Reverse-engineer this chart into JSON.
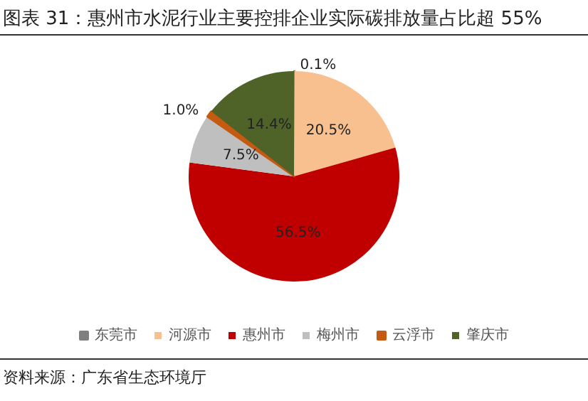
{
  "chart_data": {
    "type": "pie",
    "title": "图表 31：惠州市水泥行业主要控排企业实际碳排放量占比超 55%",
    "categories": [
      "东莞市",
      "河源市",
      "惠州市",
      "梅州市",
      "云浮市",
      "肇庆市"
    ],
    "values": [
      0.1,
      20.5,
      56.5,
      7.5,
      1.0,
      14.4
    ],
    "value_labels": [
      "0.1%",
      "20.5%",
      "56.5%",
      "7.5%",
      "1.0%",
      "14.4%"
    ],
    "colors": [
      "#7f7f7f",
      "#f8c08f",
      "#c00000",
      "#bfbfbf",
      "#c55a11",
      "#4f6228"
    ],
    "legend": "bottom",
    "annotations": [
      "资料来源：广东省生态环境厅"
    ]
  }
}
